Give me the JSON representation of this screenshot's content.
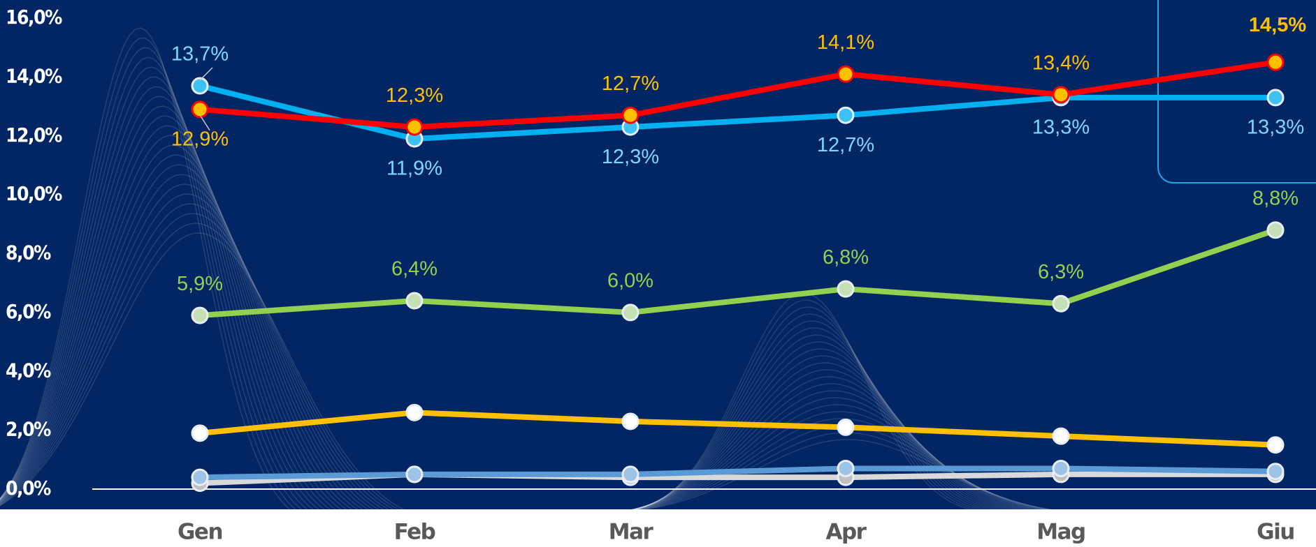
{
  "chart_data": {
    "type": "line",
    "categories": [
      "Gen",
      "Feb",
      "Mar",
      "Apr",
      "Mag",
      "Giu"
    ],
    "series": [
      {
        "color": "#ff0000",
        "marker_color": "#ffc000",
        "label_color": "#ffc000",
        "values": [
          12.9,
          12.3,
          12.7,
          14.1,
          13.4,
          14.5
        ],
        "value_labels": [
          "12,9%",
          "12,3%",
          "12,7%",
          "14,1%",
          "13,4%",
          "14,5%"
        ]
      },
      {
        "color": "#00b0f0",
        "marker_color": "#3dc1f3",
        "label_color": "#7fd6ff",
        "values": [
          13.7,
          11.9,
          12.3,
          12.7,
          13.3,
          13.3
        ],
        "value_labels": [
          "13,7%",
          "11,9%",
          "12,3%",
          "12,7%",
          "13,3%",
          "13,3%"
        ]
      },
      {
        "color": "#92d050",
        "marker_color": "#c5e0b4",
        "label_color": "#92d050",
        "values": [
          5.9,
          6.4,
          6.0,
          6.8,
          6.3,
          8.8
        ],
        "value_labels": [
          "5,9%",
          "6,4%",
          "6,0%",
          "6,8%",
          "6,3%",
          "8,8%"
        ]
      },
      {
        "color": "#ffc000",
        "marker_color": "#ffffff",
        "values": [
          1.9,
          2.6,
          2.3,
          2.1,
          1.8,
          1.5
        ]
      },
      {
        "color": "#5b9bd5",
        "marker_color": "#9dc3e6",
        "values": [
          0.4,
          0.5,
          0.5,
          0.7,
          0.7,
          0.6
        ]
      },
      {
        "color": "#d9d9d9",
        "marker_color": "#bfbfbf",
        "values": [
          0.2,
          0.5,
          0.4,
          0.4,
          0.5,
          0.5
        ]
      }
    ],
    "ylim": [
      0,
      16
    ],
    "yticks": [
      {
        "value": 0,
        "label": "0,0%"
      },
      {
        "value": 2,
        "label": "2,0%"
      },
      {
        "value": 4,
        "label": "4,0%"
      },
      {
        "value": 6,
        "label": "6,0%"
      },
      {
        "value": 8,
        "label": "8,0%"
      },
      {
        "value": 10,
        "label": "10,0%"
      },
      {
        "value": 12,
        "label": "12,0%"
      },
      {
        "value": 14,
        "label": "14,0%"
      },
      {
        "value": 16,
        "label": "16,0%"
      }
    ]
  }
}
